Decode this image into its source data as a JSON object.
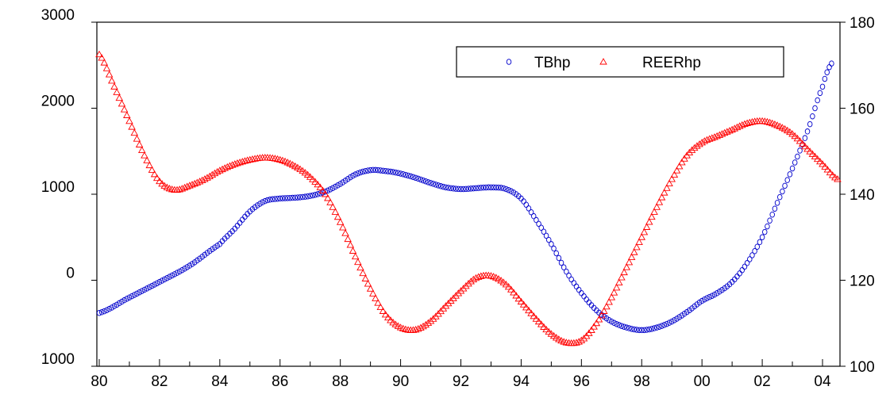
{
  "chart_data": {
    "type": "scatter",
    "title": "",
    "xlabel": "",
    "ylabel": "",
    "x_ticks": [
      "80",
      "82",
      "84",
      "86",
      "88",
      "90",
      "92",
      "94",
      "96",
      "98",
      "00",
      "02",
      "04"
    ],
    "x_tick_years": [
      1980,
      1982,
      1984,
      1986,
      1988,
      1990,
      1992,
      1994,
      1996,
      1998,
      2000,
      2002,
      2004
    ],
    "x_range": [
      1980,
      2004.5
    ],
    "y_left": {
      "ticks": [
        "3000",
        "2000",
        "1000",
        "0",
        "1000"
      ],
      "tick_values": [
        3000,
        2000,
        1000,
        0,
        -1000
      ],
      "range": [
        -1000,
        3000
      ]
    },
    "y_right": {
      "ticks": [
        "180",
        "160",
        "140",
        "120",
        "100"
      ],
      "tick_values": [
        180,
        160,
        140,
        120,
        100
      ],
      "range": [
        100,
        180
      ]
    },
    "legend_position": "top-right",
    "grid": false,
    "series": [
      {
        "name": "TBhp",
        "axis": "left",
        "color": "#0000cc",
        "marker": "circle",
        "points": [
          [
            1980.0,
            -380
          ],
          [
            1981.0,
            -200
          ],
          [
            1982.0,
            -20
          ],
          [
            1983.0,
            170
          ],
          [
            1984.0,
            420
          ],
          [
            1984.5,
            600
          ],
          [
            1985.0,
            800
          ],
          [
            1985.5,
            920
          ],
          [
            1986.0,
            950
          ],
          [
            1986.5,
            960
          ],
          [
            1987.0,
            980
          ],
          [
            1987.5,
            1030
          ],
          [
            1988.0,
            1120
          ],
          [
            1988.5,
            1230
          ],
          [
            1989.0,
            1280
          ],
          [
            1989.5,
            1270
          ],
          [
            1990.0,
            1240
          ],
          [
            1990.5,
            1190
          ],
          [
            1991.0,
            1130
          ],
          [
            1991.5,
            1080
          ],
          [
            1992.0,
            1060
          ],
          [
            1992.5,
            1070
          ],
          [
            1993.0,
            1080
          ],
          [
            1993.5,
            1060
          ],
          [
            1994.0,
            950
          ],
          [
            1994.5,
            700
          ],
          [
            1995.0,
            420
          ],
          [
            1995.5,
            100
          ],
          [
            1996.0,
            -150
          ],
          [
            1996.5,
            -350
          ],
          [
            1997.0,
            -480
          ],
          [
            1997.5,
            -550
          ],
          [
            1998.0,
            -580
          ],
          [
            1998.5,
            -550
          ],
          [
            1999.0,
            -480
          ],
          [
            1999.5,
            -370
          ],
          [
            2000.0,
            -240
          ],
          [
            2000.5,
            -150
          ],
          [
            2001.0,
            -20
          ],
          [
            2001.5,
            200
          ],
          [
            2002.0,
            500
          ],
          [
            2002.5,
            900
          ],
          [
            2003.0,
            1300
          ],
          [
            2003.5,
            1730
          ],
          [
            2004.0,
            2250
          ],
          [
            2004.3,
            2520
          ]
        ]
      },
      {
        "name": "REERhp",
        "axis": "right",
        "color": "#ff0000",
        "marker": "triangle",
        "points": [
          [
            1980.0,
            172.5
          ],
          [
            1980.5,
            165
          ],
          [
            1981.0,
            157
          ],
          [
            1981.5,
            149
          ],
          [
            1982.0,
            143
          ],
          [
            1982.5,
            141
          ],
          [
            1983.0,
            142
          ],
          [
            1983.5,
            143.5
          ],
          [
            1984.0,
            145.5
          ],
          [
            1984.5,
            147
          ],
          [
            1985.0,
            148
          ],
          [
            1985.5,
            148.5
          ],
          [
            1986.0,
            148
          ],
          [
            1986.5,
            146.5
          ],
          [
            1987.0,
            144
          ],
          [
            1987.5,
            140
          ],
          [
            1988.0,
            133.5
          ],
          [
            1988.5,
            125.5
          ],
          [
            1989.0,
            118
          ],
          [
            1989.5,
            112
          ],
          [
            1990.0,
            109
          ],
          [
            1990.5,
            108.5
          ],
          [
            1991.0,
            110.5
          ],
          [
            1991.5,
            114
          ],
          [
            1992.0,
            117.5
          ],
          [
            1992.5,
            120.5
          ],
          [
            1993.0,
            121
          ],
          [
            1993.5,
            119
          ],
          [
            1994.0,
            115
          ],
          [
            1994.5,
            111
          ],
          [
            1995.0,
            107.5
          ],
          [
            1995.5,
            105.5
          ],
          [
            1996.0,
            106
          ],
          [
            1996.5,
            110
          ],
          [
            1997.0,
            116
          ],
          [
            1997.5,
            123
          ],
          [
            1998.0,
            130
          ],
          [
            1998.5,
            137
          ],
          [
            1999.0,
            143.5
          ],
          [
            1999.5,
            149
          ],
          [
            2000.0,
            152
          ],
          [
            2000.5,
            153.5
          ],
          [
            2001.0,
            155
          ],
          [
            2001.5,
            156.5
          ],
          [
            2002.0,
            157
          ],
          [
            2002.5,
            156
          ],
          [
            2003.0,
            154
          ],
          [
            2003.5,
            150.5
          ],
          [
            2004.0,
            147
          ],
          [
            2004.5,
            143.5
          ]
        ]
      }
    ]
  }
}
